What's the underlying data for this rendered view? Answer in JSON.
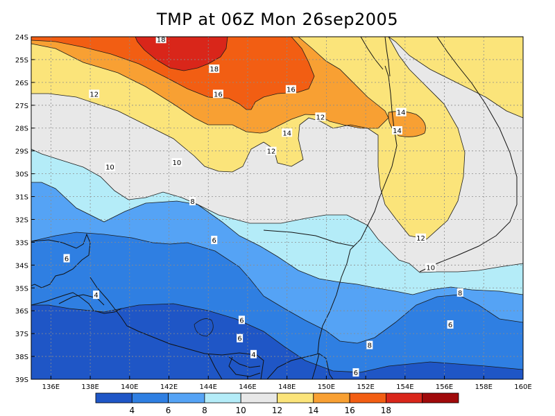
{
  "chart_data": {
    "type": "heatmap",
    "title": "TMP at 06Z Mon 26sep2005",
    "variable": "TMP",
    "xlabel": "",
    "ylabel": "",
    "x_ticks": [
      "136E",
      "138E",
      "140E",
      "142E",
      "144E",
      "146E",
      "148E",
      "150E",
      "152E",
      "154E",
      "156E",
      "158E",
      "160E"
    ],
    "y_ticks": [
      "24S",
      "25S",
      "26S",
      "27S",
      "28S",
      "29S",
      "30S",
      "31S",
      "32S",
      "33S",
      "34S",
      "35S",
      "36S",
      "37S",
      "38S",
      "39S"
    ],
    "xlim": [
      135,
      160
    ],
    "ylim": [
      -39,
      -24
    ],
    "grid": true,
    "contour_levels": [
      4,
      6,
      8,
      10,
      12,
      14,
      16,
      18
    ],
    "colorbar": {
      "placement": "bottom",
      "tick_labels": [
        "4",
        "6",
        "8",
        "10",
        "12",
        "14",
        "16",
        "18"
      ],
      "colors": [
        "#1f56c6",
        "#2f7fe2",
        "#55a3f5",
        "#b4ecf8",
        "#e8e8e8",
        "#fbe47a",
        "#f8a033",
        "#f25e13",
        "#d9261a",
        "#a00a0b"
      ]
    },
    "contour_labels": [
      {
        "text": "18",
        "lon": 141.6,
        "lat": -24.1
      },
      {
        "text": "18",
        "lon": 144.3,
        "lat": -25.4
      },
      {
        "text": "16",
        "lon": 144.5,
        "lat": -26.5
      },
      {
        "text": "16",
        "lon": 148.2,
        "lat": -26.3
      },
      {
        "text": "14",
        "lon": 148.0,
        "lat": -28.2
      },
      {
        "text": "14",
        "lon": 153.8,
        "lat": -27.3
      },
      {
        "text": "14",
        "lon": 153.6,
        "lat": -28.1
      },
      {
        "text": "12",
        "lon": 138.2,
        "lat": -26.5
      },
      {
        "text": "12",
        "lon": 149.7,
        "lat": -27.5
      },
      {
        "text": "12",
        "lon": 147.2,
        "lat": -29.0
      },
      {
        "text": "12",
        "lon": 154.8,
        "lat": -32.8
      },
      {
        "text": "10",
        "lon": 139.0,
        "lat": -29.7
      },
      {
        "text": "10",
        "lon": 142.4,
        "lat": -29.5
      },
      {
        "text": "10",
        "lon": 155.3,
        "lat": -34.1
      },
      {
        "text": "8",
        "lon": 143.2,
        "lat": -31.2
      },
      {
        "text": "8",
        "lon": 156.8,
        "lat": -35.2
      },
      {
        "text": "8",
        "lon": 152.2,
        "lat": -37.5
      },
      {
        "text": "6",
        "lon": 144.3,
        "lat": -32.9
      },
      {
        "text": "6",
        "lon": 136.8,
        "lat": -33.7
      },
      {
        "text": "6",
        "lon": 145.7,
        "lat": -36.4
      },
      {
        "text": "6",
        "lon": 156.3,
        "lat": -36.6
      },
      {
        "text": "6",
        "lon": 145.6,
        "lat": -37.2
      },
      {
        "text": "6",
        "lon": 151.5,
        "lat": -38.7
      },
      {
        "text": "4",
        "lon": 138.3,
        "lat": -35.3
      },
      {
        "text": "4",
        "lon": 146.3,
        "lat": -37.9
      }
    ]
  }
}
